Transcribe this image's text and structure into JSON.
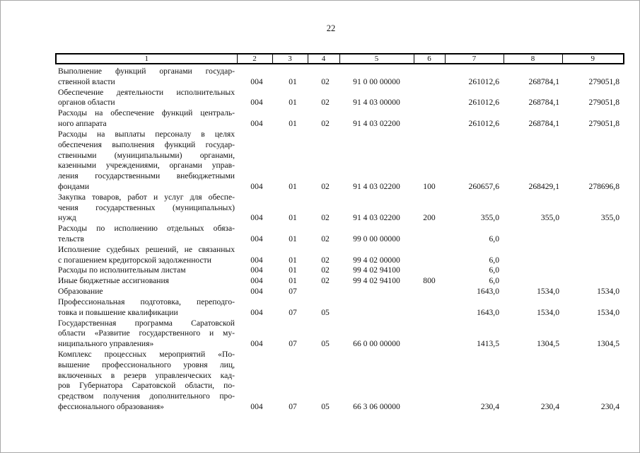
{
  "page": {
    "number": "22"
  },
  "colors": {
    "text": "#111111",
    "table_border": "#000000",
    "page_border": "#a8a8a8",
    "background": "#ffffff"
  },
  "table": {
    "header": [
      "1",
      "2",
      "3",
      "4",
      "5",
      "6",
      "7",
      "8",
      "9"
    ],
    "rows": [
      {
        "desc_lines": [
          "Выполнение функций органами государ-",
          "ственной власти"
        ],
        "cells": [
          "004",
          "01",
          "02",
          "91 0 00 00000",
          "",
          "261012,6",
          "268784,1",
          "279051,8"
        ]
      },
      {
        "desc_lines": [
          "Обеспечение деятельности исполнительных",
          "органов области"
        ],
        "cells": [
          "004",
          "01",
          "02",
          "91 4 03 00000",
          "",
          "261012,6",
          "268784,1",
          "279051,8"
        ]
      },
      {
        "desc_lines": [
          "Расходы на обеспечение функций централь-",
          "ного аппарата"
        ],
        "cells": [
          "004",
          "01",
          "02",
          "91 4 03 02200",
          "",
          "261012,6",
          "268784,1",
          "279051,8"
        ]
      },
      {
        "desc_lines": [
          "Расходы на выплаты персоналу в целях",
          "обеспечения выполнения функций государ-",
          "ственными (муниципальными) органами,",
          "казенными учреждениями, органами управ-",
          "ления государственными внебюджетными",
          "фондами"
        ],
        "cells": [
          "004",
          "01",
          "02",
          "91 4 03 02200",
          "100",
          "260657,6",
          "268429,1",
          "278696,8"
        ]
      },
      {
        "desc_lines": [
          "Закупка товаров, работ и услуг для обеспе-",
          "чения государственных (муниципальных)",
          "нужд"
        ],
        "cells": [
          "004",
          "01",
          "02",
          "91 4 03 02200",
          "200",
          "355,0",
          "355,0",
          "355,0"
        ]
      },
      {
        "desc_lines": [
          "Расходы по исполнению отдельных обяза-",
          "тельств"
        ],
        "cells": [
          "004",
          "01",
          "02",
          "99 0 00 00000",
          "",
          "6,0",
          "",
          ""
        ]
      },
      {
        "desc_lines": [
          "Исполнение судебных решений, не связанных",
          "с погашением кредиторской задолженности"
        ],
        "cells": [
          "004",
          "01",
          "02",
          "99 4 02 00000",
          "",
          "6,0",
          "",
          ""
        ]
      },
      {
        "desc_lines": [
          "Расходы по исполнительным листам"
        ],
        "cells": [
          "004",
          "01",
          "02",
          "99 4 02 94100",
          "",
          "6,0",
          "",
          ""
        ]
      },
      {
        "desc_lines": [
          "Иные бюджетные ассигнования"
        ],
        "cells": [
          "004",
          "01",
          "02",
          "99 4 02 94100",
          "800",
          "6,0",
          "",
          ""
        ]
      },
      {
        "desc_lines": [
          "Образование"
        ],
        "cells": [
          "004",
          "07",
          "",
          "",
          "",
          "1643,0",
          "1534,0",
          "1534,0"
        ]
      },
      {
        "desc_lines": [
          "Профессиональная подготовка, переподго-",
          "товка и повышение квалификации"
        ],
        "cells": [
          "004",
          "07",
          "05",
          "",
          "",
          "1643,0",
          "1534,0",
          "1534,0"
        ]
      },
      {
        "desc_lines": [
          "Государственная программа Саратовской",
          "области «Развитие государственного и му-",
          "ниципального управления»"
        ],
        "cells": [
          "004",
          "07",
          "05",
          "66 0 00 00000",
          "",
          "1413,5",
          "1304,5",
          "1304,5"
        ]
      },
      {
        "desc_lines": [
          "Комплекс процессных мероприятий «По-",
          "вышение профессионального уровня лиц,",
          "включенных в резерв управленческих кад-",
          "ров Губернатора Саратовской области, по-",
          "средством получения дополнительного про-",
          "фессионального образования»"
        ],
        "cells": [
          "004",
          "07",
          "05",
          "66 3 06 00000",
          "",
          "230,4",
          "230,4",
          "230,4"
        ]
      }
    ]
  }
}
